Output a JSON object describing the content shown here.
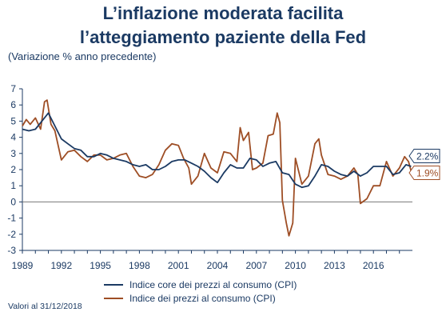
{
  "title_line1": "L’inflazione moderata facilita",
  "title_line2": "l’atteggiamento paziente della Fed",
  "subtitle": "(Variazione % anno precedente)",
  "footnote": "Valori al 31/12/2018",
  "colors": {
    "core": "#1b3a63",
    "headline": "#9e4e25",
    "axis": "#1b3a63",
    "zero": "#777777"
  },
  "chart_data": {
    "type": "line",
    "xlim": [
      1989,
      2019
    ],
    "ylim": [
      -3,
      7
    ],
    "y_ticks": [
      "7",
      "6",
      "5",
      "4",
      "3",
      "2",
      "1",
      "0",
      "-1",
      "-2",
      "-3"
    ],
    "x_ticks": [
      "1989",
      "1992",
      "1995",
      "1998",
      "2001",
      "2004",
      "2007",
      "2010",
      "2013",
      "2016"
    ],
    "end_labels": [
      "2.2%",
      "1.9%"
    ],
    "series": [
      {
        "name": "Indice core dei prezzi al consumo (CPI)",
        "color": "#1b3a63",
        "x": [
          1989.0,
          1989.5,
          1990.0,
          1990.5,
          1991.0,
          1991.5,
          1992.0,
          1992.5,
          1993.0,
          1993.5,
          1994.0,
          1994.5,
          1995.0,
          1995.5,
          1996.0,
          1996.5,
          1997.0,
          1997.5,
          1998.0,
          1998.5,
          1999.0,
          1999.5,
          2000.0,
          2000.5,
          2001.0,
          2001.5,
          2002.0,
          2002.5,
          2003.0,
          2003.5,
          2004.0,
          2004.5,
          2005.0,
          2005.5,
          2006.0,
          2006.5,
          2007.0,
          2007.5,
          2008.0,
          2008.5,
          2009.0,
          2009.5,
          2010.0,
          2010.5,
          2011.0,
          2011.5,
          2012.0,
          2012.5,
          2013.0,
          2013.5,
          2014.0,
          2014.5,
          2015.0,
          2015.5,
          2016.0,
          2016.5,
          2017.0,
          2017.5,
          2018.0,
          2018.5,
          2018.9
        ],
        "values": [
          4.5,
          4.4,
          4.5,
          5.0,
          5.5,
          4.7,
          3.9,
          3.6,
          3.3,
          3.2,
          2.8,
          2.8,
          3.0,
          2.9,
          2.7,
          2.6,
          2.5,
          2.3,
          2.2,
          2.3,
          2.0,
          2.0,
          2.2,
          2.5,
          2.6,
          2.6,
          2.4,
          2.2,
          1.9,
          1.5,
          1.2,
          1.8,
          2.3,
          2.1,
          2.1,
          2.7,
          2.6,
          2.2,
          2.4,
          2.5,
          1.8,
          1.7,
          1.1,
          0.9,
          1.0,
          1.6,
          2.3,
          2.2,
          1.9,
          1.7,
          1.6,
          1.9,
          1.6,
          1.8,
          2.2,
          2.2,
          2.2,
          1.7,
          1.8,
          2.3,
          2.2
        ]
      },
      {
        "name": "Indice dei prezzi al consumo (CPI)",
        "color": "#9e4e25",
        "x": [
          1989.0,
          1989.3,
          1989.6,
          1990.0,
          1990.4,
          1990.7,
          1990.9,
          1991.2,
          1991.5,
          1992.0,
          1992.5,
          1993.0,
          1993.5,
          1994.0,
          1994.5,
          1995.0,
          1995.5,
          1996.0,
          1996.5,
          1997.0,
          1997.5,
          1998.0,
          1998.5,
          1999.0,
          1999.5,
          2000.0,
          2000.5,
          2001.0,
          2001.4,
          2001.8,
          2002.0,
          2002.5,
          2003.0,
          2003.5,
          2004.0,
          2004.5,
          2005.0,
          2005.5,
          2005.75,
          2006.0,
          2006.4,
          2006.7,
          2007.0,
          2007.5,
          2007.9,
          2008.3,
          2008.6,
          2008.8,
          2009.0,
          2009.3,
          2009.5,
          2009.8,
          2010.0,
          2010.5,
          2011.0,
          2011.5,
          2011.8,
          2012.0,
          2012.5,
          2013.0,
          2013.5,
          2014.0,
          2014.5,
          2014.8,
          2015.0,
          2015.5,
          2016.0,
          2016.5,
          2017.0,
          2017.5,
          2018.0,
          2018.4,
          2018.7,
          2018.9
        ],
        "values": [
          4.7,
          5.1,
          4.8,
          5.2,
          4.5,
          6.2,
          6.3,
          4.8,
          4.4,
          2.6,
          3.1,
          3.2,
          2.8,
          2.5,
          2.9,
          2.9,
          2.6,
          2.7,
          2.9,
          3.0,
          2.2,
          1.6,
          1.5,
          1.7,
          2.3,
          3.2,
          3.6,
          3.5,
          2.7,
          2.1,
          1.1,
          1.6,
          3.0,
          2.1,
          1.8,
          3.1,
          3.0,
          2.5,
          4.6,
          3.8,
          4.3,
          2.0,
          2.1,
          2.4,
          4.1,
          4.2,
          5.5,
          4.9,
          0.1,
          -1.3,
          -2.1,
          -1.3,
          2.7,
          1.1,
          1.6,
          3.6,
          3.9,
          2.9,
          1.7,
          1.6,
          1.4,
          1.6,
          2.1,
          1.7,
          -0.1,
          0.2,
          1.0,
          1.0,
          2.5,
          1.6,
          2.1,
          2.8,
          2.5,
          1.9
        ]
      }
    ]
  }
}
